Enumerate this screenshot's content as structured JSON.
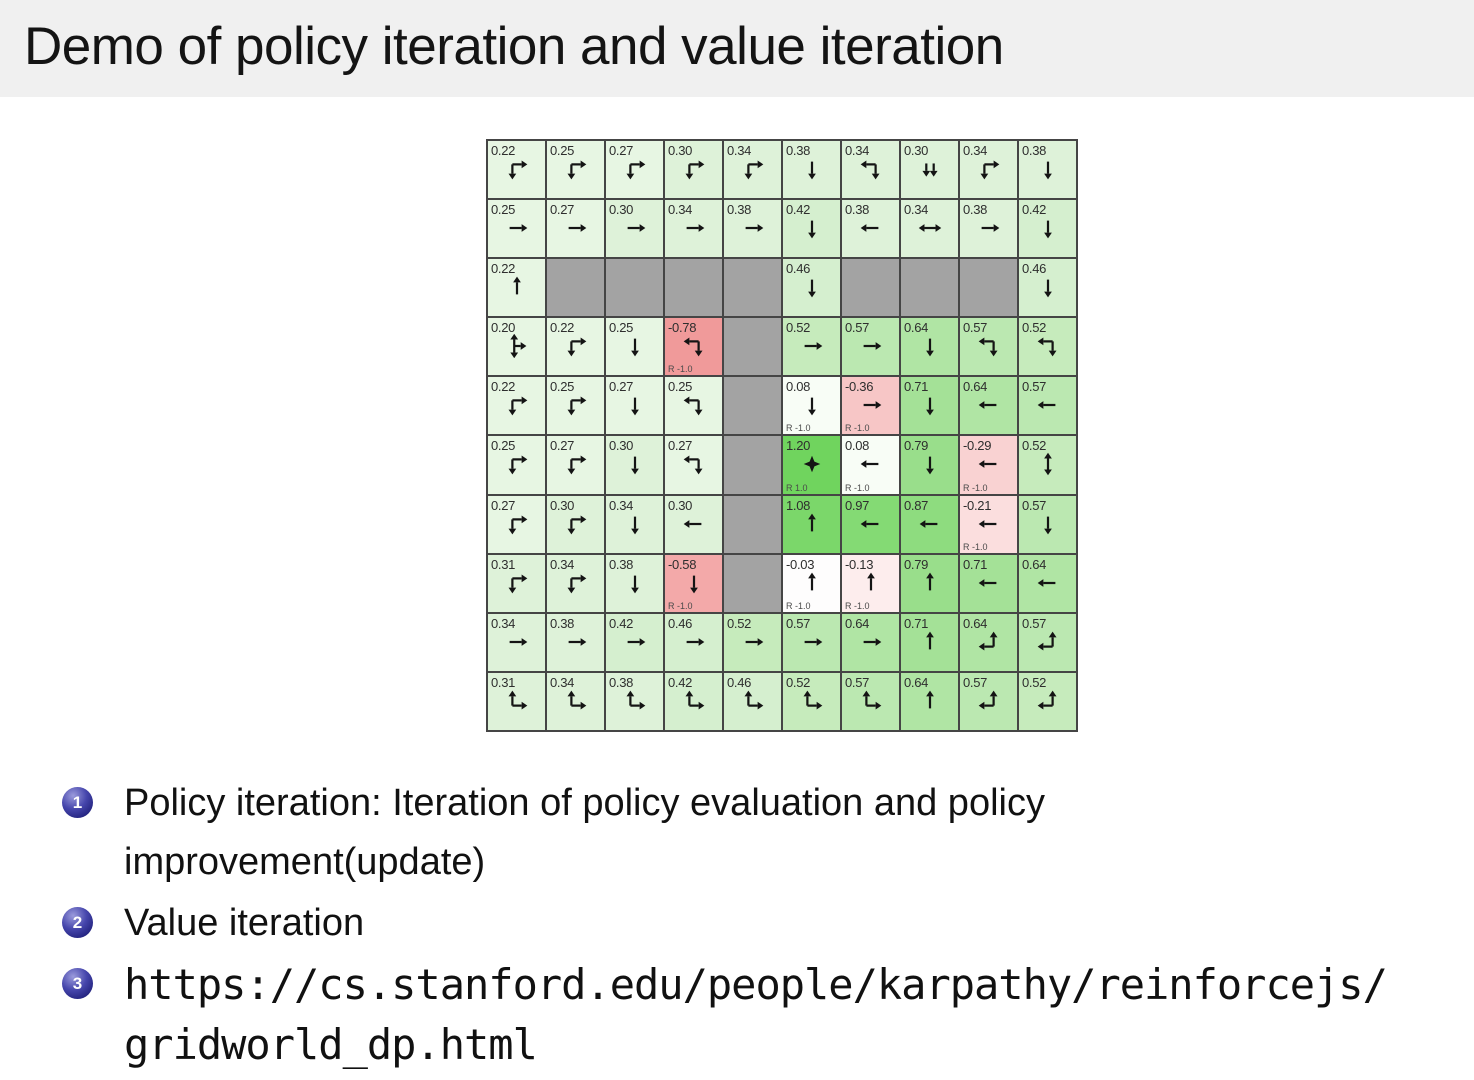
{
  "title_bar": {
    "title": "Demo of policy iteration and value iteration",
    "background": "#f0f0f0"
  },
  "bullets": [
    {
      "number": "1",
      "text": "Policy iteration: Iteration of policy evaluation and policy\nimprovement(update)",
      "mono": false
    },
    {
      "number": "2",
      "text": "Value iteration",
      "mono": false
    },
    {
      "number": "3",
      "text": "https://cs.stanford.edu/people/karpathy/reinforcejs/\ngridworld_dp.html",
      "mono": true
    }
  ],
  "colors": {
    "badge_blue": "#2e2e96",
    "wall_gray": "#a3a3a3",
    "grid_line": "#454545",
    "positive_green_max": "#70d45e",
    "negative_red_max": "#f09a9a"
  },
  "gridworld": {
    "rows": 10,
    "cols": 10,
    "cells": [
      {
        "v": "0.22",
        "arrow": "right-down",
        "bg": "#e7f6e3"
      },
      {
        "v": "0.25",
        "arrow": "right-down",
        "bg": "#e7f6e3"
      },
      {
        "v": "0.27",
        "arrow": "right-down",
        "bg": "#e7f6e3"
      },
      {
        "v": "0.30",
        "arrow": "right-down",
        "bg": "#def2d9"
      },
      {
        "v": "0.34",
        "arrow": "right-down",
        "bg": "#def2d9"
      },
      {
        "v": "0.38",
        "arrow": "down",
        "bg": "#def2d9"
      },
      {
        "v": "0.34",
        "arrow": "left-down",
        "bg": "#def2d9"
      },
      {
        "v": "0.30",
        "arrow": "double-down",
        "bg": "#def2d9"
      },
      {
        "v": "0.34",
        "arrow": "right-down",
        "bg": "#def2d9"
      },
      {
        "v": "0.38",
        "arrow": "down",
        "bg": "#def2d9"
      },
      {
        "v": "0.25",
        "arrow": "right",
        "bg": "#e7f6e3"
      },
      {
        "v": "0.27",
        "arrow": "right",
        "bg": "#e7f6e3"
      },
      {
        "v": "0.30",
        "arrow": "right",
        "bg": "#def2d9"
      },
      {
        "v": "0.34",
        "arrow": "right",
        "bg": "#def2d9"
      },
      {
        "v": "0.38",
        "arrow": "right",
        "bg": "#def2d9"
      },
      {
        "v": "0.42",
        "arrow": "down",
        "bg": "#d5efcf"
      },
      {
        "v": "0.38",
        "arrow": "left",
        "bg": "#def2d9"
      },
      {
        "v": "0.34",
        "arrow": "left-right",
        "bg": "#def2d9"
      },
      {
        "v": "0.38",
        "arrow": "right",
        "bg": "#def2d9"
      },
      {
        "v": "0.42",
        "arrow": "down",
        "bg": "#d5efcf"
      },
      {
        "v": "0.22",
        "arrow": "up",
        "bg": "#e7f6e3"
      },
      {
        "wall": true
      },
      {
        "wall": true
      },
      {
        "wall": true
      },
      {
        "wall": true
      },
      {
        "v": "0.46",
        "arrow": "down",
        "bg": "#d5efcf"
      },
      {
        "wall": true
      },
      {
        "wall": true
      },
      {
        "wall": true
      },
      {
        "v": "0.46",
        "arrow": "down",
        "bg": "#d5efcf"
      },
      {
        "v": "0.20",
        "arrow": "up-down-right",
        "bg": "#e7f6e3"
      },
      {
        "v": "0.22",
        "arrow": "right-down",
        "bg": "#e7f6e3"
      },
      {
        "v": "0.25",
        "arrow": "down",
        "bg": "#e7f6e3"
      },
      {
        "v": "-0.78",
        "arrow": "left-down",
        "bg": "#f09a9a",
        "r": "R -1.0"
      },
      {
        "wall": true
      },
      {
        "v": "0.52",
        "arrow": "right",
        "bg": "#c6ebbc"
      },
      {
        "v": "0.57",
        "arrow": "right",
        "bg": "#bbe8b1"
      },
      {
        "v": "0.64",
        "arrow": "down",
        "bg": "#b0e5a4"
      },
      {
        "v": "0.57",
        "arrow": "left-down",
        "bg": "#bbe8b1"
      },
      {
        "v": "0.52",
        "arrow": "left-down",
        "bg": "#c6ebbc"
      },
      {
        "v": "0.22",
        "arrow": "right-down",
        "bg": "#e7f6e3"
      },
      {
        "v": "0.25",
        "arrow": "right-down",
        "bg": "#e7f6e3"
      },
      {
        "v": "0.27",
        "arrow": "down",
        "bg": "#e7f6e3"
      },
      {
        "v": "0.25",
        "arrow": "left-down",
        "bg": "#e7f6e3"
      },
      {
        "wall": true
      },
      {
        "v": "0.08",
        "arrow": "down",
        "bg": "#f8fdf6",
        "r": "R -1.0"
      },
      {
        "v": "-0.36",
        "arrow": "right",
        "bg": "#f7c6c6",
        "r": "R -1.0"
      },
      {
        "v": "0.71",
        "arrow": "down",
        "bg": "#a4e197"
      },
      {
        "v": "0.64",
        "arrow": "left",
        "bg": "#b0e5a4"
      },
      {
        "v": "0.57",
        "arrow": "left",
        "bg": "#bbe8b1"
      },
      {
        "v": "0.25",
        "arrow": "right-down",
        "bg": "#e7f6e3"
      },
      {
        "v": "0.27",
        "arrow": "right-down",
        "bg": "#e7f6e3"
      },
      {
        "v": "0.30",
        "arrow": "down",
        "bg": "#def2d9"
      },
      {
        "v": "0.27",
        "arrow": "left-down",
        "bg": "#e7f6e3"
      },
      {
        "wall": true
      },
      {
        "v": "1.20",
        "arrow": "all",
        "bg": "#70d45e",
        "r": "R 1.0"
      },
      {
        "v": "0.08",
        "arrow": "left",
        "bg": "#f8fdf6",
        "r": "R -1.0"
      },
      {
        "v": "0.79",
        "arrow": "down",
        "bg": "#99de8b"
      },
      {
        "v": "-0.29",
        "arrow": "left",
        "bg": "#f9d2d2",
        "r": "R -1.0"
      },
      {
        "v": "0.52",
        "arrow": "up-down",
        "bg": "#c6ebbc"
      },
      {
        "v": "0.27",
        "arrow": "right-down",
        "bg": "#e7f6e3"
      },
      {
        "v": "0.30",
        "arrow": "right-down",
        "bg": "#def2d9"
      },
      {
        "v": "0.34",
        "arrow": "down",
        "bg": "#def2d9"
      },
      {
        "v": "0.30",
        "arrow": "left",
        "bg": "#def2d9"
      },
      {
        "wall": true
      },
      {
        "v": "1.08",
        "arrow": "up",
        "bg": "#7bd76a"
      },
      {
        "v": "0.97",
        "arrow": "left",
        "bg": "#84da74"
      },
      {
        "v": "0.87",
        "arrow": "left",
        "bg": "#8edc7f"
      },
      {
        "v": "-0.21",
        "arrow": "left",
        "bg": "#fbdede",
        "r": "R -1.0"
      },
      {
        "v": "0.57",
        "arrow": "down",
        "bg": "#bbe8b1"
      },
      {
        "v": "0.31",
        "arrow": "right-down",
        "bg": "#def2d9"
      },
      {
        "v": "0.34",
        "arrow": "right-down",
        "bg": "#def2d9"
      },
      {
        "v": "0.38",
        "arrow": "down",
        "bg": "#def2d9"
      },
      {
        "v": "-0.58",
        "arrow": "down",
        "bg": "#f3a9a9",
        "r": "R -1.0"
      },
      {
        "wall": true
      },
      {
        "v": "-0.03",
        "arrow": "up",
        "bg": "#fefdfd",
        "r": "R -1.0"
      },
      {
        "v": "-0.13",
        "arrow": "up",
        "bg": "#fdeded",
        "r": "R -1.0"
      },
      {
        "v": "0.79",
        "arrow": "up",
        "bg": "#99de8b"
      },
      {
        "v": "0.71",
        "arrow": "left",
        "bg": "#a4e197"
      },
      {
        "v": "0.64",
        "arrow": "left",
        "bg": "#b0e5a4"
      },
      {
        "v": "0.34",
        "arrow": "right",
        "bg": "#def2d9"
      },
      {
        "v": "0.38",
        "arrow": "right",
        "bg": "#def2d9"
      },
      {
        "v": "0.42",
        "arrow": "right",
        "bg": "#d5efcf"
      },
      {
        "v": "0.46",
        "arrow": "right",
        "bg": "#d5efcf"
      },
      {
        "v": "0.52",
        "arrow": "right",
        "bg": "#c6ebbc"
      },
      {
        "v": "0.57",
        "arrow": "right",
        "bg": "#bbe8b1"
      },
      {
        "v": "0.64",
        "arrow": "right",
        "bg": "#b0e5a4"
      },
      {
        "v": "0.71",
        "arrow": "up",
        "bg": "#a4e197"
      },
      {
        "v": "0.64",
        "arrow": "up-left",
        "bg": "#b0e5a4"
      },
      {
        "v": "0.57",
        "arrow": "up-left",
        "bg": "#bbe8b1"
      },
      {
        "v": "0.31",
        "arrow": "up-right",
        "bg": "#def2d9"
      },
      {
        "v": "0.34",
        "arrow": "up-right",
        "bg": "#def2d9"
      },
      {
        "v": "0.38",
        "arrow": "up-right",
        "bg": "#def2d9"
      },
      {
        "v": "0.42",
        "arrow": "up-right",
        "bg": "#d5efcf"
      },
      {
        "v": "0.46",
        "arrow": "up-right",
        "bg": "#d5efcf"
      },
      {
        "v": "0.52",
        "arrow": "up-right",
        "bg": "#c6ebbc"
      },
      {
        "v": "0.57",
        "arrow": "up-right",
        "bg": "#bbe8b1"
      },
      {
        "v": "0.64",
        "arrow": "up",
        "bg": "#b0e5a4"
      },
      {
        "v": "0.57",
        "arrow": "up-left",
        "bg": "#bbe8b1"
      },
      {
        "v": "0.52",
        "arrow": "up-left",
        "bg": "#c6ebbc"
      }
    ]
  }
}
